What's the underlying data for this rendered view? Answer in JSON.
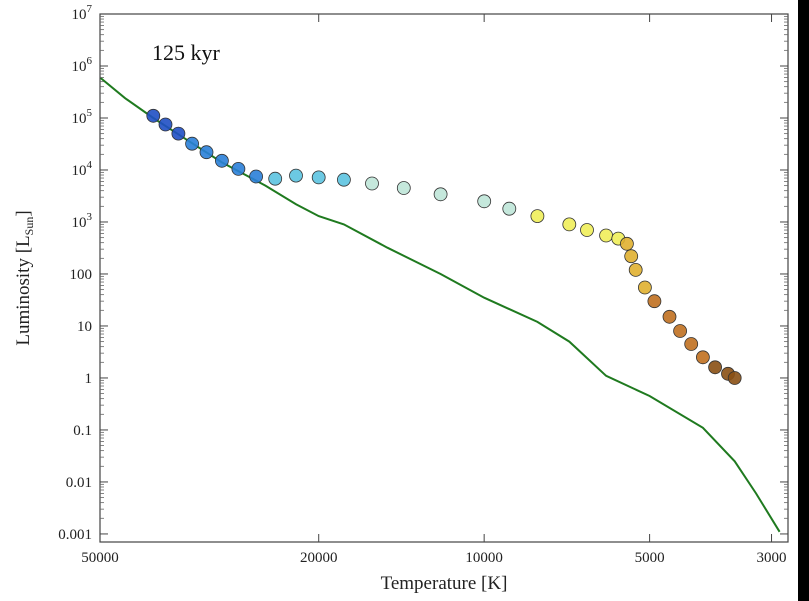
{
  "chart_data": {
    "type": "scatter",
    "annotation": "125 kyr",
    "xlabel": "Temperature [K]",
    "ylabel_main": "Luminosity [L",
    "ylabel_sub": "Sun",
    "ylabel_close": "]",
    "x_scale": "log",
    "x_reversed": true,
    "y_scale": "log",
    "xlim": [
      50000,
      2800
    ],
    "ylim": [
      0.0007,
      10000000
    ],
    "x_ticks": [
      {
        "value": 50000,
        "label": "50000"
      },
      {
        "value": 20000,
        "label": "20000"
      },
      {
        "value": 10000,
        "label": "10000"
      },
      {
        "value": 5000,
        "label": "5000"
      },
      {
        "value": 3000,
        "label": "3000"
      }
    ],
    "y_ticks": [
      {
        "value": 10000000,
        "label": "10",
        "exp": "7"
      },
      {
        "value": 1000000,
        "label": "10",
        "exp": "6"
      },
      {
        "value": 100000,
        "label": "10",
        "exp": "5"
      },
      {
        "value": 10000,
        "label": "10",
        "exp": "4"
      },
      {
        "value": 1000,
        "label": "10",
        "exp": "3"
      },
      {
        "value": 100,
        "label": "100"
      },
      {
        "value": 10,
        "label": "10"
      },
      {
        "value": 1,
        "label": "1"
      },
      {
        "value": 0.1,
        "label": "0.1"
      },
      {
        "value": 0.01,
        "label": "0.01"
      },
      {
        "value": 0.001,
        "label": "0.001"
      }
    ],
    "grid": false,
    "series": [
      {
        "kind": "line",
        "color": "#1f7a1f",
        "points": [
          [
            50000,
            600000
          ],
          [
            45000,
            240000
          ],
          [
            40000,
            100000
          ],
          [
            35000,
            40000
          ],
          [
            30000,
            14000
          ],
          [
            25000,
            5000
          ],
          [
            22000,
            2200
          ],
          [
            20000,
            1300
          ],
          [
            18000,
            900
          ],
          [
            15000,
            320
          ],
          [
            12000,
            100
          ],
          [
            10000,
            35
          ],
          [
            8000,
            12
          ],
          [
            7000,
            5
          ],
          [
            6000,
            1.1
          ],
          [
            5000,
            0.45
          ],
          [
            4000,
            0.11
          ],
          [
            3500,
            0.025
          ],
          [
            3200,
            0.006
          ],
          [
            2900,
            0.0011
          ]
        ]
      },
      {
        "kind": "scatter",
        "colormap": [
          "#1f4fc4",
          "#2a7fd8",
          "#5cc3e0",
          "#bfe6d8",
          "#f0ee5a",
          "#e0b030",
          "#c07020",
          "#8a5014"
        ],
        "points": [
          [
            40000,
            110000
          ],
          [
            38000,
            75000
          ],
          [
            36000,
            50000
          ],
          [
            34000,
            32000
          ],
          [
            32000,
            22000
          ],
          [
            30000,
            15000
          ],
          [
            28000,
            10500
          ],
          [
            26000,
            7500
          ],
          [
            24000,
            6800
          ],
          [
            22000,
            7800
          ],
          [
            20000,
            7200
          ],
          [
            18000,
            6500
          ],
          [
            16000,
            5500
          ],
          [
            14000,
            4500
          ],
          [
            12000,
            3400
          ],
          [
            10000,
            2500
          ],
          [
            9000,
            1800
          ],
          [
            8000,
            1300
          ],
          [
            7000,
            900
          ],
          [
            6500,
            700
          ],
          [
            6000,
            550
          ],
          [
            5700,
            480
          ],
          [
            5500,
            380
          ],
          [
            5400,
            220
          ],
          [
            5300,
            120
          ],
          [
            5100,
            55
          ],
          [
            4900,
            30
          ],
          [
            4600,
            15
          ],
          [
            4400,
            8
          ],
          [
            4200,
            4.5
          ],
          [
            4000,
            2.5
          ],
          [
            3800,
            1.6
          ],
          [
            3600,
            1.2
          ],
          [
            3500,
            1.0
          ]
        ]
      }
    ]
  }
}
